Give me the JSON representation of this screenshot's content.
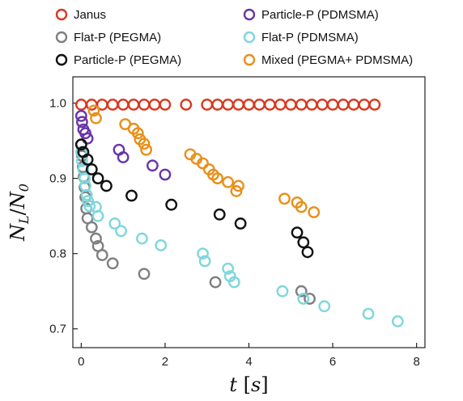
{
  "chart_data": {
    "type": "scatter",
    "title": "",
    "xlabel_parts": [
      "t",
      " [",
      "s",
      "]"
    ],
    "ylabel_parts": [
      "N",
      "L",
      "/",
      "N",
      "0"
    ],
    "xlim": [
      -0.2,
      8.2
    ],
    "ylim": [
      0.675,
      1.035
    ],
    "xticks": [
      0,
      2,
      4,
      6,
      8
    ],
    "yticks": [
      0.7,
      0.8,
      0.9,
      1.0
    ],
    "xtick_labels": [
      "0",
      "2",
      "4",
      "6",
      "8"
    ],
    "ytick_labels": [
      "0.7",
      "0.8",
      "0.9",
      "1.0"
    ],
    "grid": false,
    "legend_position": "top",
    "series": [
      {
        "name": "Janus",
        "color": "#d9381e",
        "points": [
          [
            0.0,
            0.998
          ],
          [
            0.25,
            0.998
          ],
          [
            0.5,
            0.998
          ],
          [
            0.75,
            0.998
          ],
          [
            1.0,
            0.998
          ],
          [
            1.25,
            0.998
          ],
          [
            1.5,
            0.998
          ],
          [
            1.75,
            0.998
          ],
          [
            2.0,
            0.998
          ],
          [
            2.5,
            0.998
          ],
          [
            3.0,
            0.998
          ],
          [
            3.25,
            0.998
          ],
          [
            3.5,
            0.998
          ],
          [
            3.75,
            0.998
          ],
          [
            4.0,
            0.998
          ],
          [
            4.25,
            0.998
          ],
          [
            4.5,
            0.998
          ],
          [
            4.75,
            0.998
          ],
          [
            5.0,
            0.998
          ],
          [
            5.25,
            0.998
          ],
          [
            5.5,
            0.998
          ],
          [
            5.75,
            0.998
          ],
          [
            6.0,
            0.998
          ],
          [
            6.25,
            0.998
          ],
          [
            6.5,
            0.998
          ],
          [
            6.75,
            0.998
          ],
          [
            7.0,
            0.998
          ]
        ]
      },
      {
        "name": "Particle-P (PDMSMA)",
        "color": "#6a35a8",
        "points": [
          [
            0.0,
            0.983
          ],
          [
            0.02,
            0.975
          ],
          [
            0.05,
            0.965
          ],
          [
            0.1,
            0.96
          ],
          [
            0.15,
            0.953
          ],
          [
            0.9,
            0.938
          ],
          [
            1.0,
            0.928
          ],
          [
            1.7,
            0.917
          ],
          [
            2.0,
            0.905
          ]
        ]
      },
      {
        "name": "Flat-P (PEGMA)",
        "color": "#808080",
        "points": [
          [
            0.0,
            0.945
          ],
          [
            0.02,
            0.93
          ],
          [
            0.04,
            0.915
          ],
          [
            0.06,
            0.902
          ],
          [
            0.08,
            0.888
          ],
          [
            0.1,
            0.875
          ],
          [
            0.12,
            0.86
          ],
          [
            0.15,
            0.847
          ],
          [
            0.25,
            0.835
          ],
          [
            0.35,
            0.82
          ],
          [
            0.4,
            0.81
          ],
          [
            0.5,
            0.798
          ],
          [
            0.75,
            0.787
          ],
          [
            1.5,
            0.773
          ],
          [
            3.2,
            0.762
          ],
          [
            5.25,
            0.75
          ],
          [
            5.45,
            0.74
          ]
        ]
      },
      {
        "name": "Flat-P (PDMSMA)",
        "color": "#7fd7db",
        "points": [
          [
            0.0,
            0.935
          ],
          [
            0.02,
            0.923
          ],
          [
            0.05,
            0.912
          ],
          [
            0.08,
            0.9
          ],
          [
            0.1,
            0.89
          ],
          [
            0.13,
            0.878
          ],
          [
            0.16,
            0.87
          ],
          [
            0.2,
            0.863
          ],
          [
            0.35,
            0.862
          ],
          [
            0.4,
            0.85
          ],
          [
            0.8,
            0.84
          ],
          [
            0.95,
            0.83
          ],
          [
            1.45,
            0.82
          ],
          [
            1.9,
            0.811
          ],
          [
            2.9,
            0.8
          ],
          [
            2.95,
            0.79
          ],
          [
            3.5,
            0.78
          ],
          [
            3.55,
            0.77
          ],
          [
            3.65,
            0.762
          ],
          [
            4.8,
            0.75
          ],
          [
            5.3,
            0.74
          ],
          [
            5.8,
            0.73
          ],
          [
            6.85,
            0.72
          ],
          [
            7.55,
            0.71
          ]
        ]
      },
      {
        "name": "Particle-P (PEGMA)",
        "color": "#111111",
        "points": [
          [
            0.0,
            0.945
          ],
          [
            0.05,
            0.935
          ],
          [
            0.15,
            0.925
          ],
          [
            0.25,
            0.912
          ],
          [
            0.4,
            0.9
          ],
          [
            0.6,
            0.89
          ],
          [
            1.2,
            0.877
          ],
          [
            2.15,
            0.865
          ],
          [
            3.3,
            0.852
          ],
          [
            3.8,
            0.84
          ],
          [
            5.15,
            0.828
          ],
          [
            5.3,
            0.815
          ],
          [
            5.4,
            0.802
          ]
        ]
      },
      {
        "name": "Mixed (PEGMA+ PDMSMA)",
        "color": "#e8901a",
        "points": [
          [
            0.3,
            0.99
          ],
          [
            0.35,
            0.98
          ],
          [
            1.05,
            0.972
          ],
          [
            1.25,
            0.966
          ],
          [
            1.35,
            0.96
          ],
          [
            1.4,
            0.952
          ],
          [
            1.5,
            0.946
          ],
          [
            1.55,
            0.938
          ],
          [
            2.6,
            0.932
          ],
          [
            2.75,
            0.926
          ],
          [
            2.9,
            0.92
          ],
          [
            3.05,
            0.912
          ],
          [
            3.15,
            0.905
          ],
          [
            3.25,
            0.9
          ],
          [
            3.5,
            0.895
          ],
          [
            3.75,
            0.89
          ],
          [
            3.7,
            0.883
          ],
          [
            4.85,
            0.873
          ],
          [
            5.15,
            0.868
          ],
          [
            5.25,
            0.862
          ],
          [
            5.55,
            0.855
          ]
        ]
      }
    ]
  }
}
